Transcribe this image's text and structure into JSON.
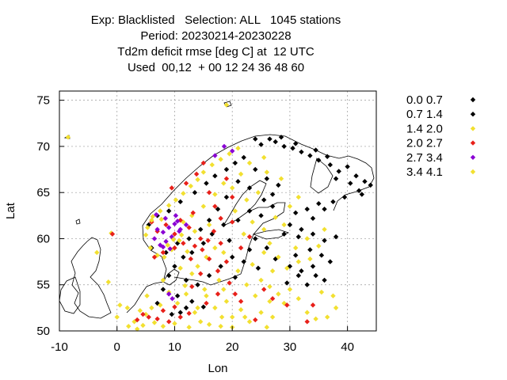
{
  "chart_data": {
    "type": "scatter",
    "title": [
      "Exp: Blacklisted   Selection: ALL   1045 stations",
      "Period: 20230214-20230228",
      "Td2m deficit rmse [deg C] at  12 UTC",
      "Used  00,12  + 00 12 24 36 48 60"
    ],
    "xlabel": "Lon",
    "ylabel": "Lat",
    "xlim": [
      -10,
      45
    ],
    "ylim": [
      50,
      76
    ],
    "xticks": [
      -10,
      0,
      10,
      20,
      30,
      40
    ],
    "yticks": [
      50,
      55,
      60,
      65,
      70,
      75
    ],
    "grid": true,
    "legend_position": "top-right, outside plot",
    "legend": [
      {
        "label": "0.0 0.7",
        "color": "#000000"
      },
      {
        "label": "0.7 1.4",
        "color": "#000000"
      },
      {
        "label": "1.4 2.0",
        "color": "#f2e030"
      },
      {
        "label": "2.0 2.7",
        "color": "#e8201a"
      },
      {
        "label": "2.7 3.4",
        "color": "#8a00d4"
      },
      {
        "label": "3.4 4.1",
        "color": "#f2e030"
      }
    ],
    "series": [
      {
        "name": "0.0 0.7",
        "points": [
          [
            25,
            70.2
          ],
          [
            26.5,
            70.8
          ],
          [
            27.5,
            70.5
          ],
          [
            29,
            70.0
          ],
          [
            30.5,
            69.8
          ],
          [
            32,
            69.4
          ],
          [
            33.5,
            69.0
          ],
          [
            35,
            68.5
          ],
          [
            37,
            68.0
          ],
          [
            38.5,
            67.3
          ],
          [
            40,
            67.8
          ],
          [
            41.5,
            66.8
          ],
          [
            43,
            66.2
          ],
          [
            44,
            65.8
          ],
          [
            42,
            65.2
          ],
          [
            39.5,
            64.5
          ],
          [
            37.5,
            64.0
          ],
          [
            35,
            63.8
          ],
          [
            33,
            63.2
          ],
          [
            31,
            62.8
          ],
          [
            30,
            61.5
          ],
          [
            32,
            61.0
          ],
          [
            34,
            60.5
          ],
          [
            36,
            59.8
          ],
          [
            38,
            60.2
          ],
          [
            33.5,
            58.8
          ],
          [
            31,
            58.2
          ],
          [
            30,
            57.0
          ],
          [
            32,
            56.5
          ],
          [
            34.5,
            56.0
          ],
          [
            36,
            55.5
          ],
          [
            33,
            55.0
          ],
          [
            28,
            65.8
          ],
          [
            26,
            66.5
          ],
          [
            24,
            67.5
          ],
          [
            22,
            68.8
          ],
          [
            20.5,
            68.2
          ],
          [
            19,
            67.5
          ],
          [
            17,
            66.8
          ],
          [
            15.5,
            66.0
          ],
          [
            13.5,
            65.0
          ],
          [
            25,
            62.5
          ],
          [
            27,
            63.5
          ],
          [
            23,
            63.0
          ],
          [
            21,
            62.0
          ],
          [
            18.5,
            61.5
          ],
          [
            16.5,
            60.5
          ],
          [
            15,
            59.5
          ],
          [
            13,
            58.5
          ],
          [
            11.5,
            58.0
          ],
          [
            10,
            57.0
          ],
          [
            9,
            56.0
          ],
          [
            12,
            55.5
          ],
          [
            14,
            55.0
          ],
          [
            8,
            54.5
          ],
          [
            10.5,
            53.8
          ],
          [
            13,
            53.2
          ],
          [
            15,
            52.6
          ],
          [
            11,
            52.0
          ],
          [
            19.5,
            59.8
          ],
          [
            24,
            60.0
          ],
          [
            26,
            59.0
          ],
          [
            22,
            57.5
          ],
          [
            24.5,
            56.8
          ],
          [
            20.5,
            55.8
          ]
        ]
      },
      {
        "name": "0.7 1.4",
        "points": [
          [
            24,
            70.8
          ],
          [
            28.5,
            71.0
          ],
          [
            31,
            70.3
          ],
          [
            34.5,
            69.6
          ],
          [
            36.5,
            68.9
          ],
          [
            38,
            66.5
          ],
          [
            40.5,
            66.0
          ],
          [
            42.5,
            64.8
          ],
          [
            36,
            63.2
          ],
          [
            34,
            62.2
          ],
          [
            31.5,
            60.2
          ],
          [
            29,
            60.5
          ],
          [
            35.5,
            58.2
          ],
          [
            37,
            57.5
          ],
          [
            34,
            57.0
          ],
          [
            31.5,
            56.0
          ],
          [
            29.5,
            55.2
          ],
          [
            27,
            64.8
          ],
          [
            25.5,
            64.2
          ],
          [
            23,
            65.5
          ],
          [
            21,
            66.2
          ],
          [
            19,
            64.5
          ],
          [
            17.5,
            63.2
          ],
          [
            16,
            62.0
          ],
          [
            14.5,
            61.0
          ],
          [
            12.5,
            60.0
          ],
          [
            10.5,
            59.5
          ],
          [
            8.5,
            58.5
          ],
          [
            6,
            59.0
          ],
          [
            5.5,
            61.5
          ],
          [
            7,
            62.5
          ],
          [
            9,
            63.0
          ],
          [
            11,
            64.0
          ],
          [
            12,
            52.5
          ],
          [
            9.5,
            51.8
          ],
          [
            7,
            53.0
          ],
          [
            16,
            56.0
          ],
          [
            18,
            57.0
          ],
          [
            20,
            58.0
          ],
          [
            23,
            58.8
          ],
          [
            27.5,
            57.8
          ]
        ]
      },
      {
        "name": "1.4 2.0",
        "points": [
          [
            -8.5,
            71.0
          ],
          [
            19,
            74.5
          ],
          [
            21,
            69.8
          ],
          [
            19.5,
            69.2
          ],
          [
            18,
            68.6
          ],
          [
            16.5,
            68.0
          ],
          [
            15,
            67.2
          ],
          [
            14,
            66.4
          ],
          [
            12.8,
            65.7
          ],
          [
            11.5,
            64.9
          ],
          [
            10.2,
            64.2
          ],
          [
            9,
            63.6
          ],
          [
            7.5,
            63.0
          ],
          [
            6.2,
            62.4
          ],
          [
            5.3,
            61.2
          ],
          [
            5,
            60.4
          ],
          [
            5.8,
            59.0
          ],
          [
            7,
            58.2
          ],
          [
            8.2,
            58.0
          ],
          [
            9.5,
            58.8
          ],
          [
            10.8,
            59.8
          ],
          [
            -1,
            60.6
          ],
          [
            -3.5,
            58.5
          ],
          [
            -1.5,
            55.3
          ],
          [
            1.8,
            52.5
          ],
          [
            0,
            51.5
          ],
          [
            3,
            51.0
          ],
          [
            4.5,
            50.6
          ],
          [
            6.5,
            50.9
          ],
          [
            8,
            50.5
          ],
          [
            10,
            50.8
          ],
          [
            12.5,
            50.4
          ],
          [
            14.5,
            51.0
          ],
          [
            16,
            50.7
          ],
          [
            18,
            50.5
          ],
          [
            20,
            51.5
          ],
          [
            21.5,
            52.3
          ],
          [
            23,
            51.0
          ],
          [
            25,
            52.0
          ],
          [
            26.5,
            53.2
          ],
          [
            28,
            54.0
          ],
          [
            30,
            54.5
          ],
          [
            31.5,
            53.5
          ],
          [
            33,
            52.0
          ],
          [
            34.5,
            51.3
          ],
          [
            36.5,
            51.5
          ],
          [
            38,
            52.5
          ],
          [
            37.5,
            53.8
          ],
          [
            35.5,
            54.2
          ],
          [
            29,
            53.0
          ],
          [
            27,
            51.5
          ],
          [
            24,
            53.8
          ],
          [
            22.5,
            55.0
          ],
          [
            21,
            56.5
          ],
          [
            23.5,
            57.2
          ],
          [
            25.5,
            58.5
          ],
          [
            27,
            56.5
          ],
          [
            29.5,
            56.8
          ],
          [
            31,
            59.0
          ],
          [
            33,
            60.0
          ],
          [
            29,
            61.5
          ],
          [
            27.5,
            62.3
          ],
          [
            25.5,
            61.0
          ],
          [
            23.5,
            61.8
          ],
          [
            22,
            60.5
          ],
          [
            20.5,
            63.0
          ],
          [
            22.5,
            64.2
          ],
          [
            24.5,
            65.0
          ],
          [
            21.5,
            67.0
          ],
          [
            23,
            68.2
          ],
          [
            25.5,
            68.8
          ],
          [
            26,
            67.2
          ],
          [
            8,
            55.5
          ],
          [
            9,
            54.2
          ],
          [
            10.5,
            53.0
          ],
          [
            12,
            54.0
          ],
          [
            13.5,
            52.0
          ],
          [
            15.5,
            53.8
          ],
          [
            17,
            52.5
          ],
          [
            19,
            53.2
          ],
          [
            18.5,
            54.5
          ],
          [
            20,
            50.4
          ],
          [
            6,
            52.5
          ],
          [
            5,
            51.8
          ],
          [
            3.5,
            50.2
          ],
          [
            14,
            57.0
          ],
          [
            15.5,
            58.0
          ],
          [
            17,
            59.0
          ],
          [
            18.5,
            58.5
          ],
          [
            13,
            62.5
          ],
          [
            15,
            63.5
          ],
          [
            17,
            64.8
          ],
          [
            18.5,
            66.0
          ],
          [
            20,
            65.5
          ],
          [
            11.5,
            61.8
          ],
          [
            13.5,
            60.8
          ],
          [
            16,
            61.5
          ],
          [
            2,
            50.5
          ],
          [
            0.5,
            52.8
          ],
          [
            4,
            52.2
          ],
          [
            11,
            56.8
          ],
          [
            13,
            56.2
          ],
          [
            25,
            55.5
          ],
          [
            26.5,
            54.8
          ],
          [
            31.5,
            57.5
          ],
          [
            33.5,
            57.8
          ],
          [
            35,
            59.2
          ],
          [
            36,
            61.0
          ],
          [
            30,
            63.5
          ],
          [
            31.5,
            64.5
          ],
          [
            28.5,
            66.5
          ]
        ]
      },
      {
        "name": "2.0 2.7",
        "points": [
          [
            -0.8,
            60.5
          ],
          [
            3.5,
            51.2
          ],
          [
            4.5,
            51.8
          ],
          [
            5.5,
            51.5
          ],
          [
            7,
            51.3
          ],
          [
            8,
            52.2
          ],
          [
            9,
            51.0
          ],
          [
            10,
            52.6
          ],
          [
            11,
            51.5
          ],
          [
            12.5,
            51.9
          ],
          [
            6.5,
            58.0
          ],
          [
            8,
            58.5
          ],
          [
            10,
            59.0
          ],
          [
            11.5,
            59.5
          ],
          [
            7,
            60.8
          ],
          [
            8.5,
            61.5
          ],
          [
            10,
            60.5
          ],
          [
            11,
            62.0
          ],
          [
            6,
            61.8
          ],
          [
            12.5,
            61.2
          ],
          [
            13.5,
            59.2
          ],
          [
            14.5,
            60.0
          ],
          [
            15.8,
            59.8
          ],
          [
            16.8,
            60.8
          ],
          [
            18,
            59.5
          ],
          [
            16,
            57.8
          ],
          [
            17.5,
            56.5
          ],
          [
            19.5,
            55.2
          ],
          [
            20.5,
            54.0
          ],
          [
            21.5,
            53.2
          ],
          [
            17.5,
            54.0
          ],
          [
            13,
            54.8
          ],
          [
            14.5,
            56.2
          ],
          [
            18,
            62.2
          ],
          [
            17,
            63.5
          ],
          [
            16,
            65.0
          ],
          [
            19,
            66.5
          ],
          [
            20,
            61.8
          ],
          [
            9.5,
            65.5
          ],
          [
            12,
            66.0
          ],
          [
            13.8,
            67.0
          ],
          [
            15,
            68.2
          ],
          [
            25.5,
            54.5
          ],
          [
            27,
            53.5
          ],
          [
            29.5,
            52.8
          ],
          [
            33,
            51.0
          ],
          [
            34,
            52.8
          ],
          [
            21,
            49.8
          ],
          [
            24,
            51.2
          ],
          [
            15.5,
            53.0
          ],
          [
            19,
            57.5
          ],
          [
            21.5,
            59.0
          ],
          [
            23,
            60.2
          ],
          [
            20,
            64.5
          ],
          [
            12.8,
            57.8
          ],
          [
            13.2,
            62.8
          ],
          [
            14.8,
            58.8
          ]
        ]
      },
      {
        "name": "2.7 3.4",
        "points": [
          [
            7,
            61.0
          ],
          [
            8,
            60.7
          ],
          [
            9,
            61.2
          ],
          [
            10,
            61.6
          ],
          [
            11,
            61.0
          ],
          [
            9.5,
            60.2
          ],
          [
            8.5,
            59.7
          ],
          [
            7.5,
            59.3
          ],
          [
            6.5,
            60.0
          ],
          [
            9.2,
            58.9
          ],
          [
            10.8,
            60.8
          ],
          [
            9,
            54.0
          ],
          [
            9.6,
            53.5
          ],
          [
            12,
            61.5
          ],
          [
            8.4,
            62.2
          ],
          [
            10.2,
            62.5
          ],
          [
            6.8,
            62.6
          ],
          [
            17,
            69.0
          ],
          [
            18.6,
            70.0
          ],
          [
            20,
            69.5
          ],
          [
            8,
            59.1
          ],
          [
            10.5,
            61.9
          ]
        ]
      },
      {
        "name": "3.4 4.1",
        "points": [
          [
            6,
            62.0
          ],
          [
            8.8,
            59.3
          ],
          [
            9.8,
            59.9
          ],
          [
            11.2,
            60.4
          ],
          [
            7.7,
            62.1
          ],
          [
            12.2,
            58.6
          ],
          [
            11.8,
            54.9
          ],
          [
            7.5,
            52.8
          ],
          [
            5.2,
            53.8
          ],
          [
            14,
            52.5
          ],
          [
            18.2,
            51.5
          ],
          [
            22.2,
            51.5
          ],
          [
            26,
            50.4
          ],
          [
            17.7,
            55.5
          ],
          [
            15.2,
            54.5
          ],
          [
            26.5,
            59.5
          ],
          [
            28,
            58.0
          ]
        ]
      }
    ]
  }
}
